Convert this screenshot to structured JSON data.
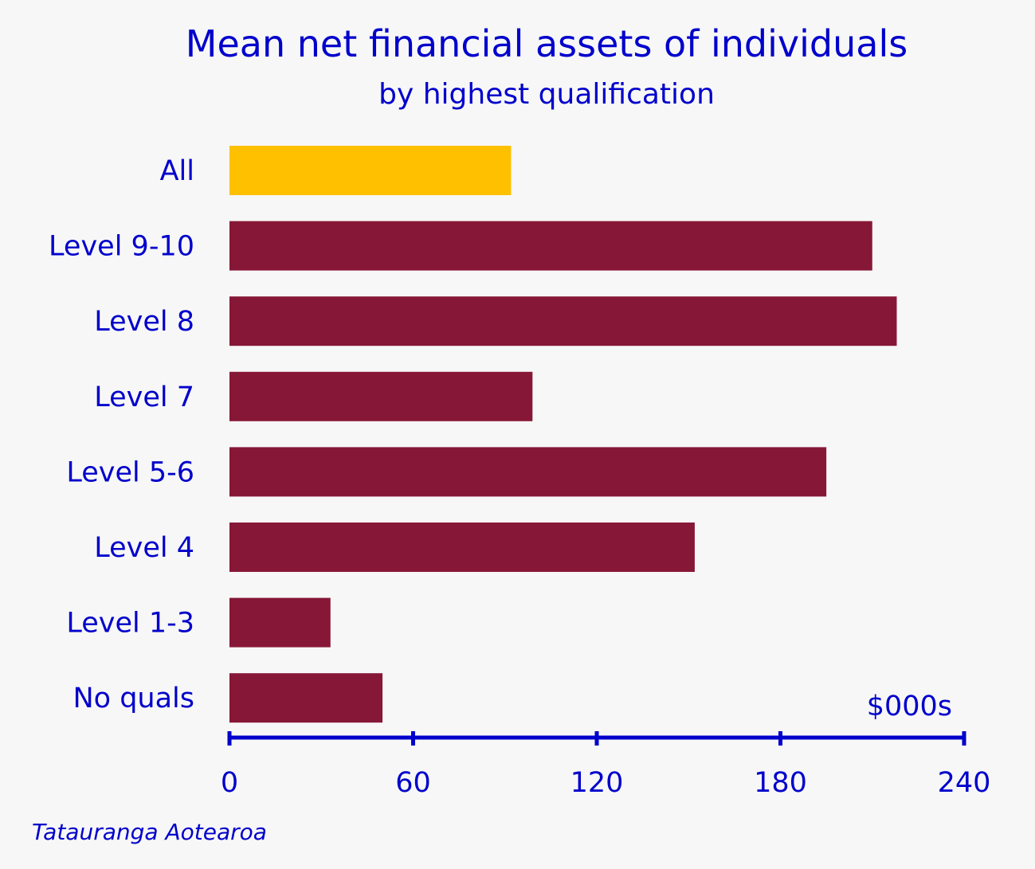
{
  "chart_data": {
    "type": "bar",
    "orientation": "horizontal",
    "title": "Mean net financial assets of individuals",
    "subtitle": "by highest qualification",
    "categories": [
      "All",
      "Level 9-10",
      "Level 8",
      "Level 7",
      "Level 5-6",
      "Level 4",
      "Level 1-3",
      "No quals"
    ],
    "values": [
      92,
      210,
      218,
      99,
      195,
      152,
      33,
      50
    ],
    "highlight_category": "All",
    "xlabel": "$000s",
    "xlim": [
      0,
      240
    ],
    "xticks": [
      "0",
      "60",
      "120",
      "180",
      "240"
    ],
    "grid": false,
    "legend": "none",
    "colors": {
      "text": "#0000cc",
      "axis": "#0000cc",
      "bar": "#871737",
      "highlight_bar": "#ffc000",
      "background": "#f7f7f7"
    }
  },
  "source_label": "Tatauranga Aotearoa"
}
